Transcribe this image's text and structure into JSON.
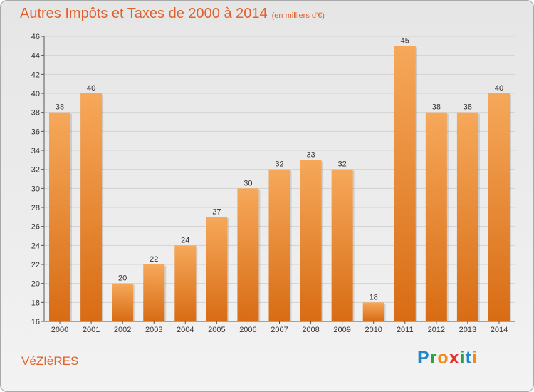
{
  "title": {
    "main": "Autres Impôts et Taxes de 2000 à 2014",
    "unit": "(en milliers d'€)"
  },
  "commune": "VéZIèRES",
  "logo": {
    "text": "Proxiti",
    "letters": [
      {
        "char": "P",
        "color": "#1e88c9"
      },
      {
        "char": "r",
        "color": "#2e9e4a"
      },
      {
        "char": "o",
        "color": "#f28c1f"
      },
      {
        "char": "x",
        "color": "#e5322d"
      },
      {
        "char": "i",
        "color": "#2e9e4a"
      },
      {
        "char": "t",
        "color": "#1e88c9"
      },
      {
        "char": "i",
        "color": "#f28c1f"
      }
    ]
  },
  "colors": {
    "bar_light": "#f6a85a",
    "bar_dark": "#d86c14",
    "accent_text": "#e0612c",
    "grid": "#d2d2d2",
    "axis": "#555555"
  },
  "chart_data": {
    "type": "bar",
    "title": "Autres Impôts et Taxes de 2000 à 2014",
    "subtitle": "(en milliers d'€)",
    "xlabel": "",
    "ylabel": "",
    "categories": [
      "2000",
      "2001",
      "2002",
      "2003",
      "2004",
      "2005",
      "2006",
      "2007",
      "2008",
      "2009",
      "2010",
      "2011",
      "2012",
      "2013",
      "2014"
    ],
    "values": [
      38,
      40,
      20,
      22,
      24,
      27,
      30,
      32,
      33,
      32,
      18,
      45,
      38,
      38,
      40
    ],
    "ylim": [
      16,
      46
    ],
    "yticks": [
      16,
      18,
      20,
      22,
      24,
      26,
      28,
      30,
      32,
      34,
      36,
      38,
      40,
      42,
      44,
      46
    ],
    "grid": true,
    "legend": "none"
  }
}
